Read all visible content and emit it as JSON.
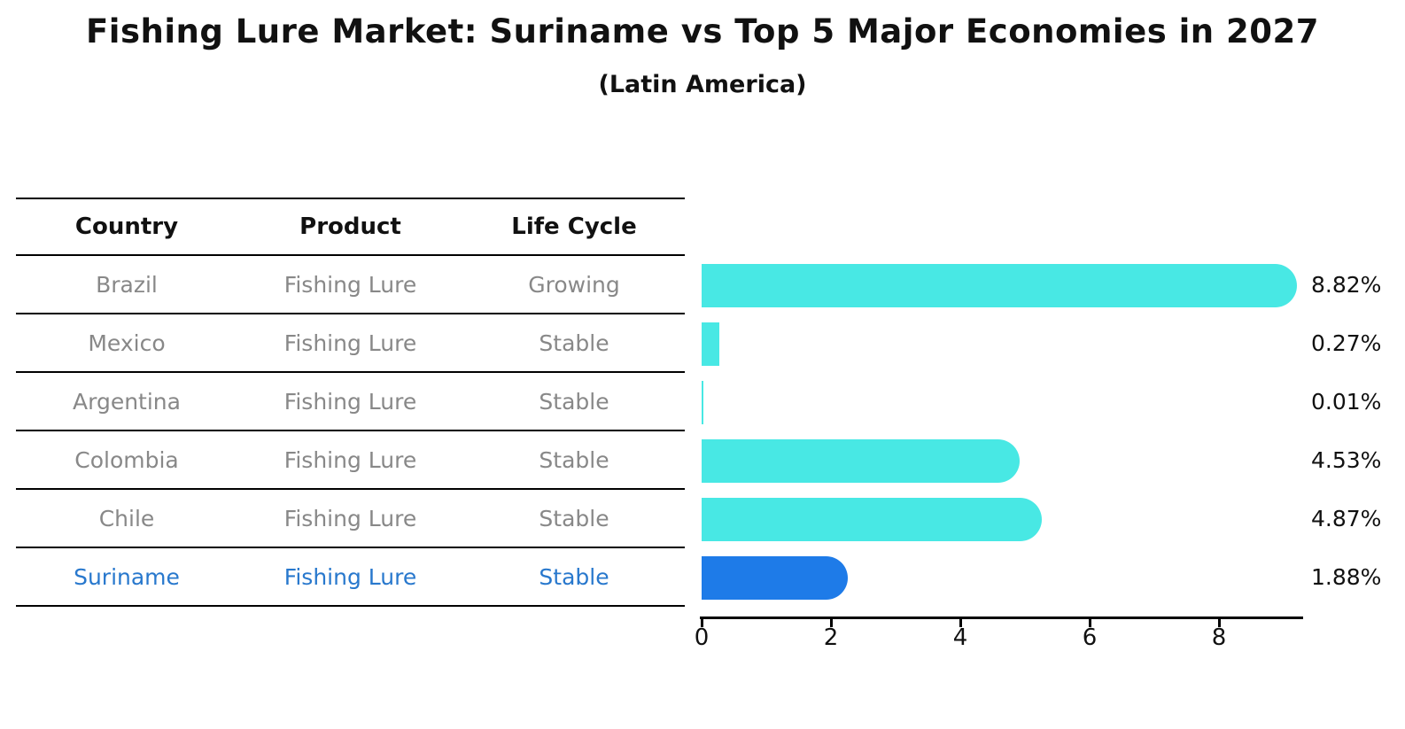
{
  "title": "Fishing Lure Market: Suriname vs Top 5 Major Economies in 2027",
  "subtitle": "(Latin America)",
  "table": {
    "headers": [
      "Country",
      "Product",
      "Life Cycle"
    ]
  },
  "colors": {
    "bar_default": "#48E8E4",
    "bar_highlight": "#1E7BE8",
    "highlight_text": "#2878CD",
    "row_text": "#888888",
    "line_color": "#000000"
  },
  "chart_data": {
    "type": "bar",
    "orientation": "horizontal",
    "title": "Fishing Lure Market: Suriname vs Top 5 Major Economies in 2027",
    "subtitle": "(Latin America)",
    "xlabel": "",
    "ylabel": "",
    "xlim": [
      0,
      9.3
    ],
    "x_ticks": [
      "0",
      "2",
      "4",
      "6",
      "8"
    ],
    "x_tick_values": [
      0,
      2,
      4,
      6,
      8
    ],
    "grid": false,
    "legend_position": "none",
    "value_suffix": "%",
    "rows": [
      {
        "country": "Brazil",
        "product": "Fishing Lure",
        "life_cycle": "Growing",
        "value": 8.82,
        "label": "8.82%",
        "highlight": false
      },
      {
        "country": "Mexico",
        "product": "Fishing Lure",
        "life_cycle": "Stable",
        "value": 0.27,
        "label": "0.27%",
        "highlight": false
      },
      {
        "country": "Argentina",
        "product": "Fishing Lure",
        "life_cycle": "Stable",
        "value": 0.01,
        "label": "0.01%",
        "highlight": false
      },
      {
        "country": "Colombia",
        "product": "Fishing Lure",
        "life_cycle": "Stable",
        "value": 4.53,
        "label": "4.53%",
        "highlight": false
      },
      {
        "country": "Chile",
        "product": "Fishing Lure",
        "life_cycle": "Stable",
        "value": 4.87,
        "label": "4.87%",
        "highlight": false
      },
      {
        "country": "Suriname",
        "product": "Fishing Lure",
        "life_cycle": "Stable",
        "value": 1.88,
        "label": "1.88%",
        "highlight": true
      }
    ]
  }
}
